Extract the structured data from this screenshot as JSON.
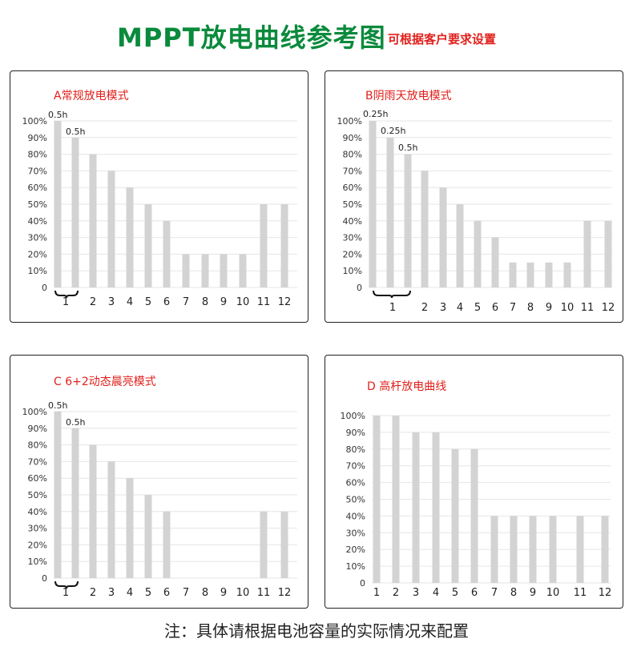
{
  "header": {
    "title": "MPPT放电曲线参考图",
    "subtitle": "可根据客户要求设置"
  },
  "footer": {
    "note": "注：具体请根据电池容量的实际情况来配置"
  },
  "colors": {
    "bar": "#d3d3d3",
    "title": "#0a8a3c",
    "panel_title": "#e0201b",
    "grid": "#e6e6e6"
  },
  "chart_data": [
    {
      "type": "bar",
      "title": "A常规放电模式",
      "ylim": [
        0,
        100
      ],
      "yticks": [
        "0",
        "10%",
        "20%",
        "30%",
        "40%",
        "50%",
        "60%",
        "70%",
        "80%",
        "90%",
        "100%"
      ],
      "categories": [
        "1",
        "1",
        "2",
        "3",
        "4",
        "5",
        "6",
        "7",
        "8",
        "9",
        "10",
        "11",
        "12"
      ],
      "xlabels": [
        "1",
        "2",
        "3",
        "4",
        "5",
        "6",
        "7",
        "8",
        "9",
        "10",
        "11",
        "12"
      ],
      "values": [
        100,
        90,
        80,
        70,
        60,
        50,
        40,
        20,
        20,
        20,
        20,
        50,
        50
      ],
      "sub_labels": [
        "0.5h",
        "0.5h"
      ],
      "grid": true
    },
    {
      "type": "bar",
      "title": "B阴雨天放电模式",
      "ylim": [
        0,
        100
      ],
      "yticks": [
        "0",
        "10%",
        "20%",
        "30%",
        "40%",
        "50%",
        "60%",
        "70%",
        "80%",
        "90%",
        "100%"
      ],
      "categories": [
        "1",
        "1",
        "1",
        "2",
        "3",
        "4",
        "5",
        "6",
        "7",
        "8",
        "9",
        "10",
        "11",
        "12"
      ],
      "xlabels": [
        "1",
        "2",
        "3",
        "4",
        "5",
        "6",
        "7",
        "8",
        "9",
        "10",
        "11",
        "12"
      ],
      "values": [
        100,
        90,
        80,
        70,
        60,
        50,
        40,
        30,
        15,
        15,
        15,
        15,
        40,
        40
      ],
      "sub_labels": [
        "0.25h",
        "0.25h",
        "0.5h"
      ],
      "grid": true
    },
    {
      "type": "bar",
      "title": "C 6+2动态晨亮模式",
      "ylim": [
        0,
        100
      ],
      "yticks": [
        "0",
        "10%",
        "20%",
        "30%",
        "40%",
        "50%",
        "60%",
        "70%",
        "80%",
        "90%",
        "100%"
      ],
      "categories": [
        "1",
        "1",
        "2",
        "3",
        "4",
        "5",
        "6",
        "7",
        "8",
        "9",
        "10",
        "11",
        "12"
      ],
      "xlabels": [
        "1",
        "2",
        "3",
        "4",
        "5",
        "6",
        "7",
        "8",
        "9",
        "10",
        "11",
        "12"
      ],
      "values": [
        100,
        90,
        80,
        70,
        60,
        50,
        40,
        0,
        0,
        0,
        0,
        40,
        40
      ],
      "sub_labels": [
        "0.5h",
        "0.5h"
      ],
      "grid": true
    },
    {
      "type": "bar",
      "title": "D 高杆放电曲线",
      "ylim": [
        0,
        100
      ],
      "yticks": [
        "0",
        "10%",
        "20%",
        "30%",
        "40%",
        "50%",
        "60%",
        "70%",
        "80%",
        "90%",
        "100%"
      ],
      "categories": [
        "1",
        "2",
        "3",
        "4",
        "5",
        "6",
        "7",
        "8",
        "9",
        "10",
        "11",
        "12"
      ],
      "xlabels": [
        "1",
        "2",
        "3",
        "4",
        "5",
        "6",
        "7",
        "8",
        "9",
        "10",
        "11",
        "12"
      ],
      "values": [
        100,
        100,
        90,
        90,
        80,
        80,
        40,
        40,
        40,
        40,
        40,
        40
      ],
      "sub_labels": [],
      "grid": true
    }
  ]
}
